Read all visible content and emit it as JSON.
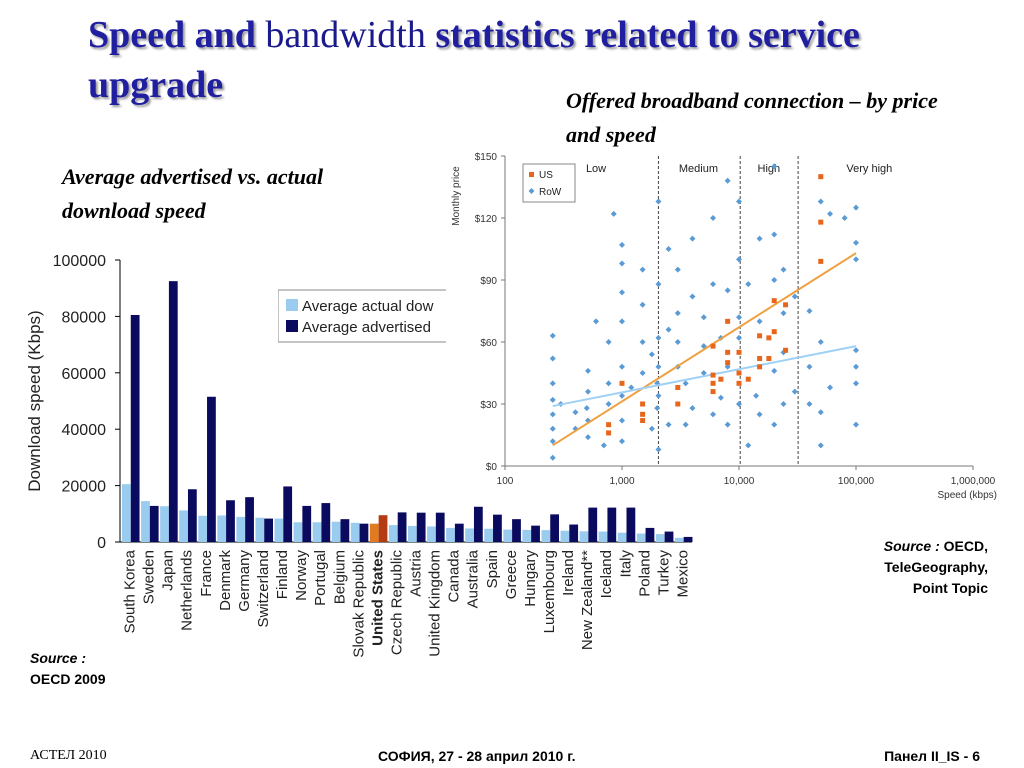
{
  "slide": {
    "title_part1": "Speed and",
    "title_part2": " bandwidth ",
    "title_part3": "statistics related to service upgrade",
    "left_caption": "Average advertised vs. actual download speed",
    "right_caption": "Offered broadband connection – by price and speed",
    "left_source_label": "Source :",
    "left_source_text": "OECD 2009",
    "right_source_label": "Source :",
    "right_source_text_1": " OECD,",
    "right_source_text_2": "TeleGeography,",
    "right_source_text_3": "Point Topic",
    "footer_left": "АСТЕЛ 2010",
    "footer_center": "СОФИЯ, 27 - 28 април 2010 г.",
    "footer_right": "Панел II_IS -  6"
  },
  "colors": {
    "title": "#1f1fa0",
    "actual": "#99ccee",
    "advertised": "#0a0a5e",
    "us_actual": "#e07b20",
    "us_advertised": "#b43c14",
    "rows_points": "#5b9bd5",
    "us_points": "#e8661c",
    "us_trend": "#f0a040",
    "row_trend": "#9fd0f5"
  },
  "chart_data": [
    {
      "type": "bar",
      "ylabel": "Download speed (Kbps)",
      "ylim": [
        0,
        100000
      ],
      "yticks": [
        "0",
        "20000",
        "40000",
        "60000",
        "80000",
        "100000"
      ],
      "legend_placement": "top-right",
      "legend": [
        "Average actual dow",
        "Average advertised"
      ],
      "categories": [
        "South Korea",
        "Sweden",
        "Japan",
        "Netherlands",
        "France",
        "Denmark",
        "Germany",
        "Switzerland",
        "Finland",
        "Norway",
        "Portugal",
        "Belgium",
        "Slovak Republic",
        "United States",
        "Czech Republic",
        "Austria",
        "United Kingdom",
        "Canada",
        "Australia",
        "Spain",
        "Greece",
        "Hungary",
        "Luxembourg",
        "Ireland",
        "New Zealand**",
        "Iceland",
        "Italy",
        "Poland",
        "Turkey",
        "Mexico"
      ],
      "highlight": "United States",
      "series": [
        {
          "name": "Average actual dow",
          "values": [
            20500,
            14500,
            12700,
            11200,
            9300,
            9400,
            8900,
            8600,
            8300,
            7000,
            7000,
            7200,
            6800,
            6500,
            6000,
            5700,
            5500,
            5000,
            4800,
            4700,
            4400,
            4300,
            4200,
            4000,
            3800,
            3700,
            3300,
            3000,
            2800,
            1500
          ]
        },
        {
          "name": "Average advertised",
          "values": [
            80500,
            12800,
            92500,
            18700,
            51500,
            14800,
            15900,
            8300,
            19700,
            12800,
            13800,
            8100,
            6500,
            9500,
            10500,
            10400,
            10400,
            6500,
            12500,
            9700,
            8100,
            5800,
            9800,
            6200,
            12200,
            12200,
            12200,
            5000,
            3700,
            1800
          ]
        }
      ]
    },
    {
      "type": "scatter",
      "xlabel": "Speed (kbps)",
      "ylabel": "Monthly price",
      "xscale": "log",
      "xlim": [
        100,
        1000000
      ],
      "ylim": [
        0,
        150
      ],
      "xticks": [
        "100",
        "1,000",
        "10,000",
        "100,000",
        "1,000,000"
      ],
      "yticks": [
        "$0",
        "$30",
        "$60",
        "$90",
        "$120",
        "$150"
      ],
      "tiers": [
        "Low",
        "Medium",
        "High",
        "Very high"
      ],
      "tier_boundaries": [
        2048,
        10240,
        32000
      ],
      "legend_placement": "top-left",
      "series": [
        {
          "name": "US",
          "points": [
            [
              768,
              20
            ],
            [
              768,
              16
            ],
            [
              1000,
              40
            ],
            [
              1500,
              30
            ],
            [
              1500,
              25
            ],
            [
              1500,
              22
            ],
            [
              3000,
              38
            ],
            [
              3000,
              30
            ],
            [
              6000,
              44
            ],
            [
              6000,
              40
            ],
            [
              6000,
              36
            ],
            [
              6000,
              58
            ],
            [
              7000,
              42
            ],
            [
              8000,
              70
            ],
            [
              8000,
              55
            ],
            [
              8000,
              50
            ],
            [
              10000,
              55
            ],
            [
              10000,
              45
            ],
            [
              10000,
              40
            ],
            [
              12000,
              42
            ],
            [
              15000,
              63
            ],
            [
              15000,
              52
            ],
            [
              15000,
              48
            ],
            [
              18000,
              62
            ],
            [
              18000,
              52
            ],
            [
              20000,
              65
            ],
            [
              20000,
              80
            ],
            [
              25000,
              78
            ],
            [
              25000,
              56
            ],
            [
              50000,
              140
            ],
            [
              50000,
              118
            ],
            [
              50000,
              99
            ]
          ]
        },
        {
          "name": "RoW",
          "points": [
            [
              256,
              4
            ],
            [
              256,
              12
            ],
            [
              256,
              18
            ],
            [
              256,
              25
            ],
            [
              256,
              32
            ],
            [
              256,
              40
            ],
            [
              256,
              52
            ],
            [
              256,
              63
            ],
            [
              300,
              30
            ],
            [
              400,
              18
            ],
            [
              400,
              26
            ],
            [
              500,
              28
            ],
            [
              512,
              14
            ],
            [
              512,
              22
            ],
            [
              512,
              36
            ],
            [
              512,
              46
            ],
            [
              600,
              70
            ],
            [
              700,
              10
            ],
            [
              768,
              30
            ],
            [
              768,
              40
            ],
            [
              768,
              60
            ],
            [
              850,
              122
            ],
            [
              1000,
              12
            ],
            [
              1000,
              22
            ],
            [
              1000,
              34
            ],
            [
              1000,
              48
            ],
            [
              1000,
              70
            ],
            [
              1000,
              84
            ],
            [
              1000,
              98
            ],
            [
              1000,
              107
            ],
            [
              1200,
              38
            ],
            [
              1500,
              45
            ],
            [
              1500,
              60
            ],
            [
              1500,
              78
            ],
            [
              1500,
              95
            ],
            [
              1800,
              18
            ],
            [
              1800,
              54
            ],
            [
              2000,
              28
            ],
            [
              2000,
              40
            ],
            [
              2048,
              8
            ],
            [
              2048,
              34
            ],
            [
              2048,
              48
            ],
            [
              2048,
              62
            ],
            [
              2048,
              88
            ],
            [
              2048,
              128
            ],
            [
              2500,
              20
            ],
            [
              2500,
              66
            ],
            [
              2500,
              105
            ],
            [
              3000,
              48
            ],
            [
              3000,
              60
            ],
            [
              3000,
              74
            ],
            [
              3000,
              95
            ],
            [
              3500,
              20
            ],
            [
              3500,
              40
            ],
            [
              4000,
              82
            ],
            [
              4000,
              110
            ],
            [
              4000,
              28
            ],
            [
              5000,
              58
            ],
            [
              5000,
              72
            ],
            [
              5000,
              45
            ],
            [
              6000,
              25
            ],
            [
              6000,
              120
            ],
            [
              6000,
              88
            ],
            [
              7000,
              33
            ],
            [
              7000,
              62
            ],
            [
              8000,
              20
            ],
            [
              8000,
              48
            ],
            [
              8000,
              85
            ],
            [
              8000,
              138
            ],
            [
              10000,
              30
            ],
            [
              10000,
              62
            ],
            [
              10000,
              72
            ],
            [
              10000,
              100
            ],
            [
              10000,
              128
            ],
            [
              12000,
              10
            ],
            [
              12000,
              88
            ],
            [
              14000,
              34
            ],
            [
              15000,
              25
            ],
            [
              15000,
              70
            ],
            [
              15000,
              110
            ],
            [
              20000,
              20
            ],
            [
              20000,
              46
            ],
            [
              20000,
              90
            ],
            [
              20000,
              112
            ],
            [
              20000,
              145
            ],
            [
              24000,
              30
            ],
            [
              24000,
              55
            ],
            [
              24000,
              74
            ],
            [
              24000,
              95
            ],
            [
              30000,
              36
            ],
            [
              30000,
              82
            ],
            [
              40000,
              30
            ],
            [
              40000,
              48
            ],
            [
              40000,
              75
            ],
            [
              50000,
              10
            ],
            [
              50000,
              26
            ],
            [
              50000,
              60
            ],
            [
              50000,
              128
            ],
            [
              60000,
              38
            ],
            [
              60000,
              122
            ],
            [
              80000,
              120
            ],
            [
              100000,
              20
            ],
            [
              100000,
              40
            ],
            [
              100000,
              48
            ],
            [
              100000,
              56
            ],
            [
              100000,
              100
            ],
            [
              100000,
              108
            ],
            [
              100000,
              125
            ]
          ]
        }
      ],
      "trendlines": [
        {
          "series": "US",
          "from": [
            256,
            10
          ],
          "to": [
            100000,
            103
          ]
        },
        {
          "series": "RoW",
          "from": [
            256,
            29
          ],
          "to": [
            100000,
            58
          ]
        }
      ]
    }
  ]
}
